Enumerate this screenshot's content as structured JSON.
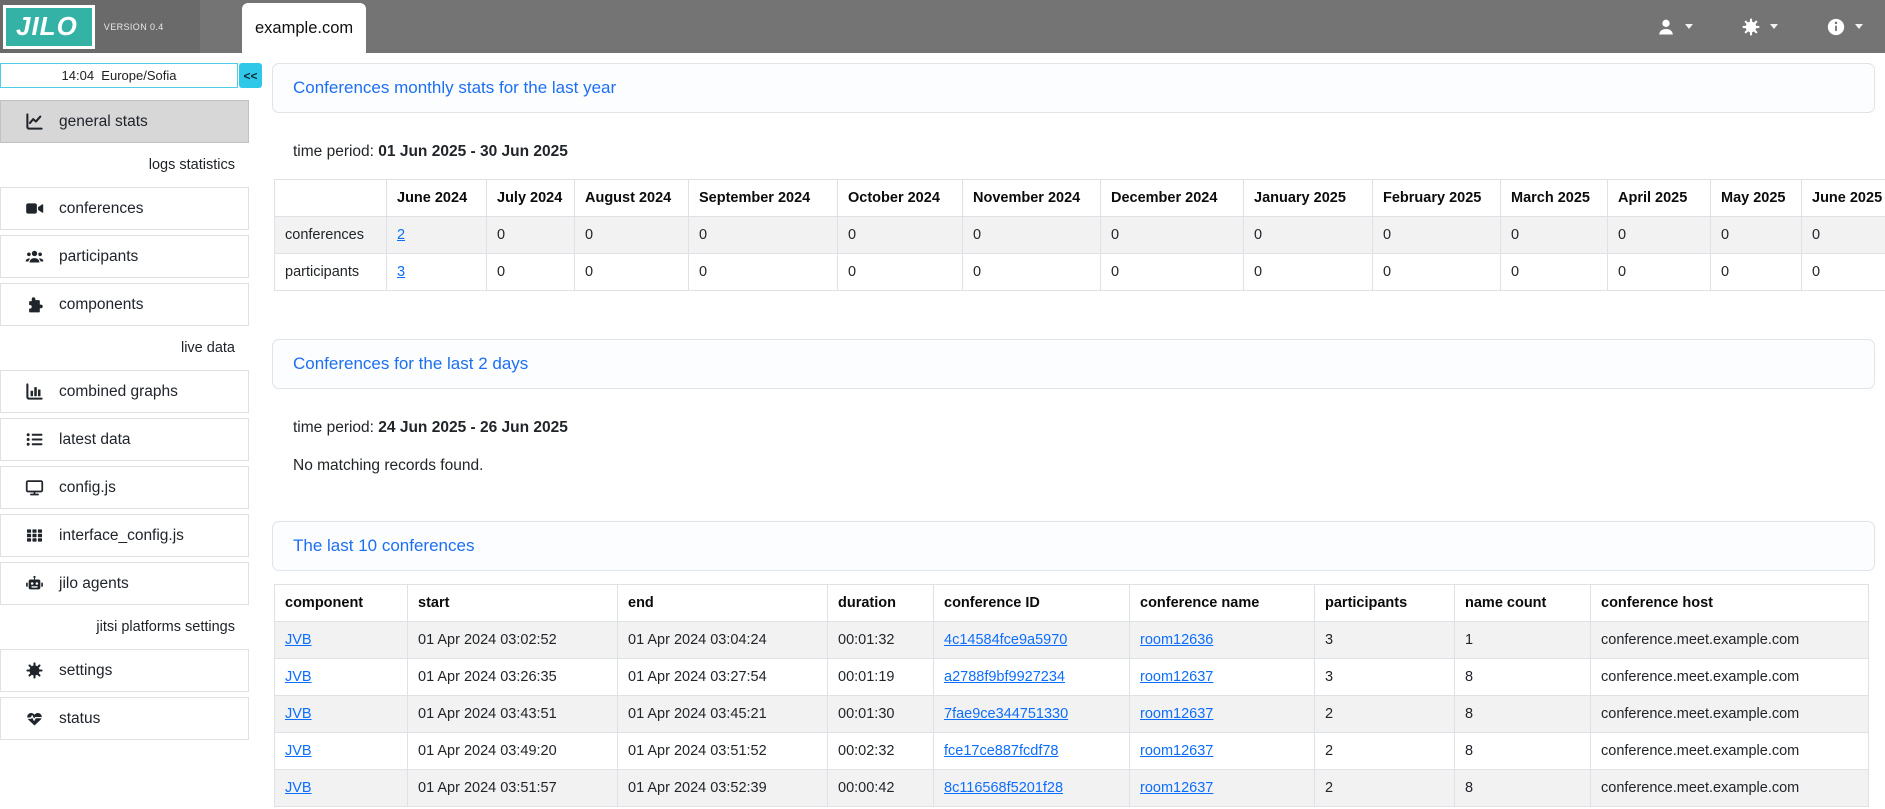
{
  "app": {
    "logo_text": "JILO",
    "version_label": "VERSION 0.4",
    "tab_label": "example.com"
  },
  "colors": {
    "teal_brand": "#35b2a6",
    "header_gray": "#747474",
    "cyan_accent": "#2fc8e8",
    "heading_blue": "#1d6ff2",
    "link_blue": "#0d6efd"
  },
  "header_menus": [
    {
      "icon": "user-icon"
    },
    {
      "icon": "gear-icon"
    },
    {
      "icon": "info-icon"
    }
  ],
  "sidebar": {
    "clock": "14:04  Europe/Sofia",
    "collapse_label": "<<",
    "section_labels": {
      "logs": "logs statistics",
      "live": "live data",
      "platforms": "jitsi platforms settings"
    },
    "items": [
      {
        "label": "general stats",
        "icon": "chart-line-icon",
        "active": true
      },
      {
        "label": "conferences",
        "icon": "video-icon",
        "active": false
      },
      {
        "label": "participants",
        "icon": "users-icon",
        "active": false
      },
      {
        "label": "components",
        "icon": "puzzle-icon",
        "active": false
      },
      {
        "label": "combined graphs",
        "icon": "chart-column-icon",
        "active": false
      },
      {
        "label": "latest data",
        "icon": "list-icon",
        "active": false
      },
      {
        "label": "config.js",
        "icon": "desktop-icon",
        "active": false
      },
      {
        "label": "interface_config.js",
        "icon": "table-cells-icon",
        "active": false
      },
      {
        "label": "jilo agents",
        "icon": "robot-icon",
        "active": false
      },
      {
        "label": "settings",
        "icon": "gear-icon",
        "active": false
      },
      {
        "label": "status",
        "icon": "heart-pulse-icon",
        "active": false
      }
    ]
  },
  "main": {
    "monthly": {
      "title": "Conferences monthly stats for the last year",
      "period_label": "time period:",
      "period_value": "01 Jun 2025 - 30 Jun 2025",
      "table": {
        "headers": [
          "",
          "June 2024",
          "July 2024",
          "August 2024",
          "September 2024",
          "October 2024",
          "November 2024",
          "December 2024",
          "January 2025",
          "February 2025",
          "March 2025",
          "April 2025",
          "May 2025",
          "June 2025"
        ],
        "rows": [
          [
            "conferences",
            {
              "text": "2",
              "link": true
            },
            "0",
            "0",
            "0",
            "0",
            "0",
            "0",
            "0",
            "0",
            "0",
            "0",
            "0",
            "0"
          ],
          [
            "participants",
            {
              "text": "3",
              "link": true
            },
            "0",
            "0",
            "0",
            "0",
            "0",
            "0",
            "0",
            "0",
            "0",
            "0",
            "0",
            "0"
          ]
        ]
      }
    },
    "recent": {
      "title": "Conferences for the last 2 days",
      "period_label": "time period:",
      "period_value": "24 Jun 2025 - 26 Jun 2025",
      "empty_text": "No matching records found."
    },
    "last10": {
      "title": "The last 10 conferences",
      "table": {
        "headers": [
          "component",
          "start",
          "end",
          "duration",
          "conference ID",
          "conference name",
          "participants",
          "name count",
          "conference host"
        ],
        "rows": [
          [
            {
              "text": "JVB",
              "link": true
            },
            "01 Apr 2024 03:02:52",
            "01 Apr 2024 03:04:24",
            "00:01:32",
            {
              "text": "4c14584fce9a5970",
              "link": true
            },
            {
              "text": "room12636",
              "link": true
            },
            "3",
            "1",
            "conference.meet.example.com"
          ],
          [
            {
              "text": "JVB",
              "link": true
            },
            "01 Apr 2024 03:26:35",
            "01 Apr 2024 03:27:54",
            "00:01:19",
            {
              "text": "a2788f9bf9927234",
              "link": true
            },
            {
              "text": "room12637",
              "link": true
            },
            "3",
            "8",
            "conference.meet.example.com"
          ],
          [
            {
              "text": "JVB",
              "link": true
            },
            "01 Apr 2024 03:43:51",
            "01 Apr 2024 03:45:21",
            "00:01:30",
            {
              "text": "7fae9ce344751330",
              "link": true
            },
            {
              "text": "room12637",
              "link": true
            },
            "2",
            "8",
            "conference.meet.example.com"
          ],
          [
            {
              "text": "JVB",
              "link": true
            },
            "01 Apr 2024 03:49:20",
            "01 Apr 2024 03:51:52",
            "00:02:32",
            {
              "text": "fce17ce887fcdf78",
              "link": true
            },
            {
              "text": "room12637",
              "link": true
            },
            "2",
            "8",
            "conference.meet.example.com"
          ],
          [
            {
              "text": "JVB",
              "link": true
            },
            "01 Apr 2024 03:51:57",
            "01 Apr 2024 03:52:39",
            "00:00:42",
            {
              "text": "8c116568f5201f28",
              "link": true
            },
            {
              "text": "room12637",
              "link": true
            },
            "2",
            "8",
            "conference.meet.example.com"
          ]
        ]
      }
    }
  }
}
